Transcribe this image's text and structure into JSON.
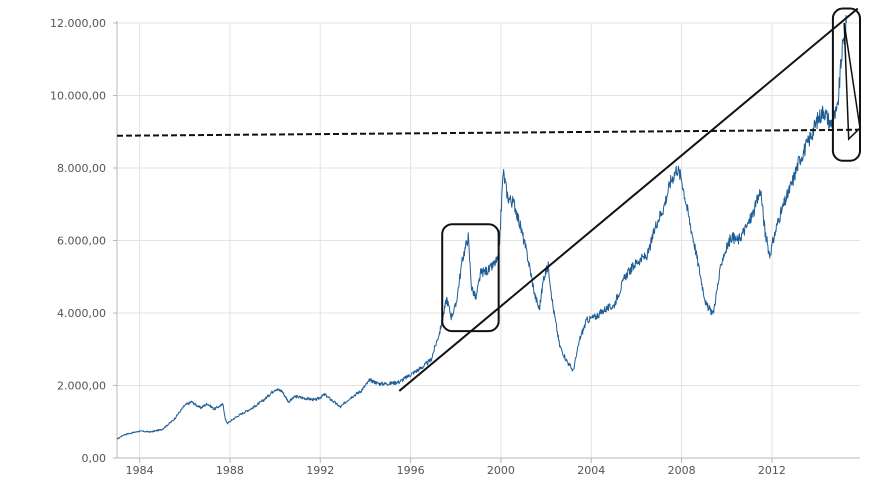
{
  "chart_data": {
    "type": "line",
    "title": "",
    "xlabel": "",
    "ylabel": "",
    "xlim": [
      1983.0,
      2015.9
    ],
    "ylim": [
      0,
      12000
    ],
    "grid": true,
    "y_ticks": [
      {
        "value": 0,
        "label": "0,00"
      },
      {
        "value": 2000,
        "label": "2.000,00"
      },
      {
        "value": 4000,
        "label": "4.000,00"
      },
      {
        "value": 6000,
        "label": "6.000,00"
      },
      {
        "value": 8000,
        "label": "8.000,00"
      },
      {
        "value": 10000,
        "label": "10.000,00"
      },
      {
        "value": 12000,
        "label": "12.000,00"
      }
    ],
    "x_ticks": [
      {
        "value": 1984,
        "label": "1984"
      },
      {
        "value": 1988,
        "label": "1988"
      },
      {
        "value": 1992,
        "label": "1992"
      },
      {
        "value": 1996,
        "label": "1996"
      },
      {
        "value": 2000,
        "label": "2000"
      },
      {
        "value": 2004,
        "label": "2004"
      },
      {
        "value": 2008,
        "label": "2008"
      },
      {
        "value": 2012,
        "label": "2012"
      }
    ],
    "series_color": "#1f5d96",
    "series": [
      {
        "x": [
          1983.0,
          1983.3,
          1983.7,
          1984.0,
          1984.5,
          1985.0,
          1985.5,
          1986.0,
          1986.3,
          1986.7,
          1987.0,
          1987.3,
          1987.7,
          1987.8,
          1987.9,
          1988.2,
          1988.6,
          1989.0,
          1989.5,
          1990.0,
          1990.3,
          1990.6,
          1990.9,
          1991.3,
          1991.8,
          1992.2,
          1992.6,
          1992.9,
          1993.3,
          1993.8,
          1994.2,
          1994.6,
          1995.0,
          1995.5,
          1996.0,
          1996.5,
          1996.9,
          1997.3,
          1997.6,
          1997.8,
          1998.0,
          1998.3,
          1998.55,
          1998.7,
          1998.9,
          1999.1,
          1999.5,
          1999.9,
          2000.1,
          2000.3,
          2000.6,
          2000.9,
          2001.2,
          2001.5,
          2001.7,
          2001.9,
          2002.1,
          2002.3,
          2002.6,
          2002.9,
          2003.2,
          2003.5,
          2003.8,
          2004.2,
          2004.6,
          2005.0,
          2005.5,
          2006.0,
          2006.5,
          2006.9,
          2007.2,
          2007.5,
          2007.8,
          2008.0,
          2008.3,
          2008.6,
          2008.9,
          2009.1,
          2009.4,
          2009.8,
          2010.2,
          2010.5,
          2010.9,
          2011.2,
          2011.5,
          2011.7,
          2011.9,
          2012.3,
          2012.6,
          2012.9,
          2013.2,
          2013.6,
          2014.0,
          2014.3,
          2014.6,
          2014.9,
          2015.1,
          2015.3
        ],
        "values": [
          520,
          640,
          700,
          740,
          720,
          790,
          1050,
          1450,
          1550,
          1380,
          1500,
          1350,
          1480,
          1050,
          960,
          1100,
          1250,
          1380,
          1600,
          1900,
          1850,
          1550,
          1700,
          1650,
          1600,
          1750,
          1550,
          1400,
          1650,
          1850,
          2150,
          2050,
          2050,
          2100,
          2300,
          2500,
          2700,
          3500,
          4400,
          3900,
          4200,
          5500,
          6100,
          4700,
          4400,
          5100,
          5200,
          5500,
          7900,
          7200,
          7000,
          6300,
          5500,
          4500,
          4100,
          5000,
          5300,
          4200,
          3100,
          2700,
          2400,
          3300,
          3800,
          3900,
          4100,
          4200,
          5000,
          5400,
          5600,
          6500,
          6900,
          7600,
          8000,
          7700,
          6700,
          5800,
          4800,
          4200,
          4000,
          5500,
          6100,
          6000,
          6400,
          6800,
          7400,
          6200,
          5600,
          6600,
          7100,
          7600,
          8200,
          8700,
          9300,
          9600,
          9200,
          9600,
          11200,
          12000
        ]
      }
    ],
    "annotations": {
      "horizontal_dashed_line_value": 9000,
      "trend_line": {
        "x": [
          1995.5,
          2015.8
        ],
        "y": [
          1850,
          12400
        ]
      },
      "boxes": [
        {
          "x": [
            1997.4,
            1999.9
          ],
          "y": [
            3500,
            6450
          ]
        },
        {
          "x": [
            2014.7,
            2015.9
          ],
          "y": [
            8200,
            12400
          ]
        }
      ],
      "pointer_triangle": {
        "x": [
          2015.2,
          2015.9,
          2015.4
        ],
        "y": [
          12000,
          9100,
          8800
        ]
      }
    }
  }
}
